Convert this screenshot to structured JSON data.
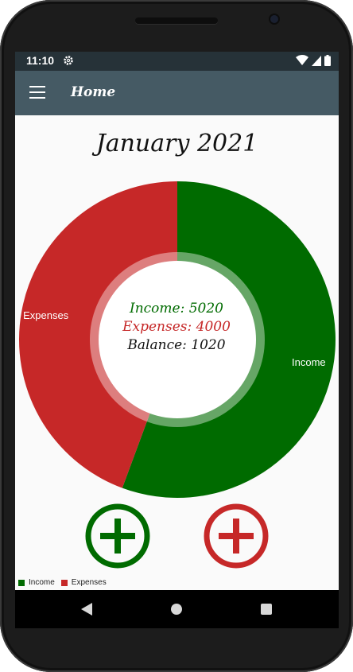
{
  "status_bar": {
    "time": "11:10"
  },
  "app_bar": {
    "title": "Home"
  },
  "month_title": "January 2021",
  "summary": {
    "income_text": "Income: 5020",
    "expenses_text": "Expenses: 4000",
    "balance_text": "Balance: 1020"
  },
  "colors": {
    "income": "#006b00",
    "expenses": "#c62828",
    "app_bar": "#455a64",
    "status_bar": "#263238"
  },
  "chart_data": {
    "type": "pie",
    "style": "donut",
    "categories": [
      "Income",
      "Expenses"
    ],
    "values": [
      5020,
      4000
    ],
    "slice_labels": [
      "Income",
      "Expenses"
    ],
    "legend": {
      "placement": "bottom-left",
      "entries": [
        "Income",
        "Expenses"
      ]
    }
  },
  "buttons": {
    "add_income_icon": "plus-circle-icon",
    "add_expense_icon": "plus-circle-icon"
  }
}
